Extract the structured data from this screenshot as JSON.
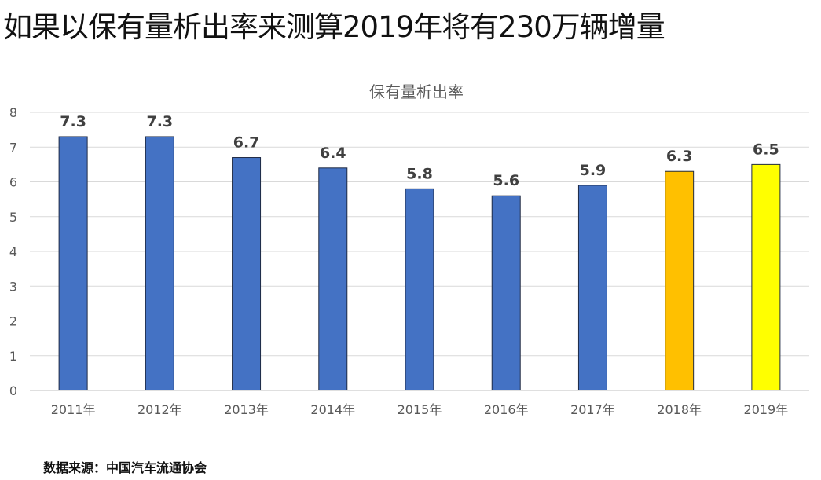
{
  "headline": "如果以保有量析出率来测算2019年将有230万辆增量",
  "source": "数据来源：中国汽车流通协会",
  "chart_data": {
    "type": "bar",
    "title": "保有量析出率",
    "xlabel": "",
    "ylabel": "",
    "categories": [
      "2011年",
      "2012年",
      "2013年",
      "2014年",
      "2015年",
      "2016年",
      "2017年",
      "2018年",
      "2019年"
    ],
    "values": [
      7.3,
      7.3,
      6.7,
      6.4,
      5.8,
      5.6,
      5.9,
      6.3,
      6.5
    ],
    "value_labels": [
      "7.3",
      "7.3",
      "6.7",
      "6.4",
      "5.8",
      "5.6",
      "5.9",
      "6.3",
      "6.5"
    ],
    "bar_colors": [
      "#4472C4",
      "#4472C4",
      "#4472C4",
      "#4472C4",
      "#4472C4",
      "#4472C4",
      "#4472C4",
      "#FFC000",
      "#FFFF00"
    ],
    "ylim": [
      0,
      8
    ],
    "yticks": [
      "0",
      "1",
      "2",
      "3",
      "4",
      "5",
      "6",
      "7",
      "8"
    ],
    "grid": true,
    "legend": "none"
  }
}
